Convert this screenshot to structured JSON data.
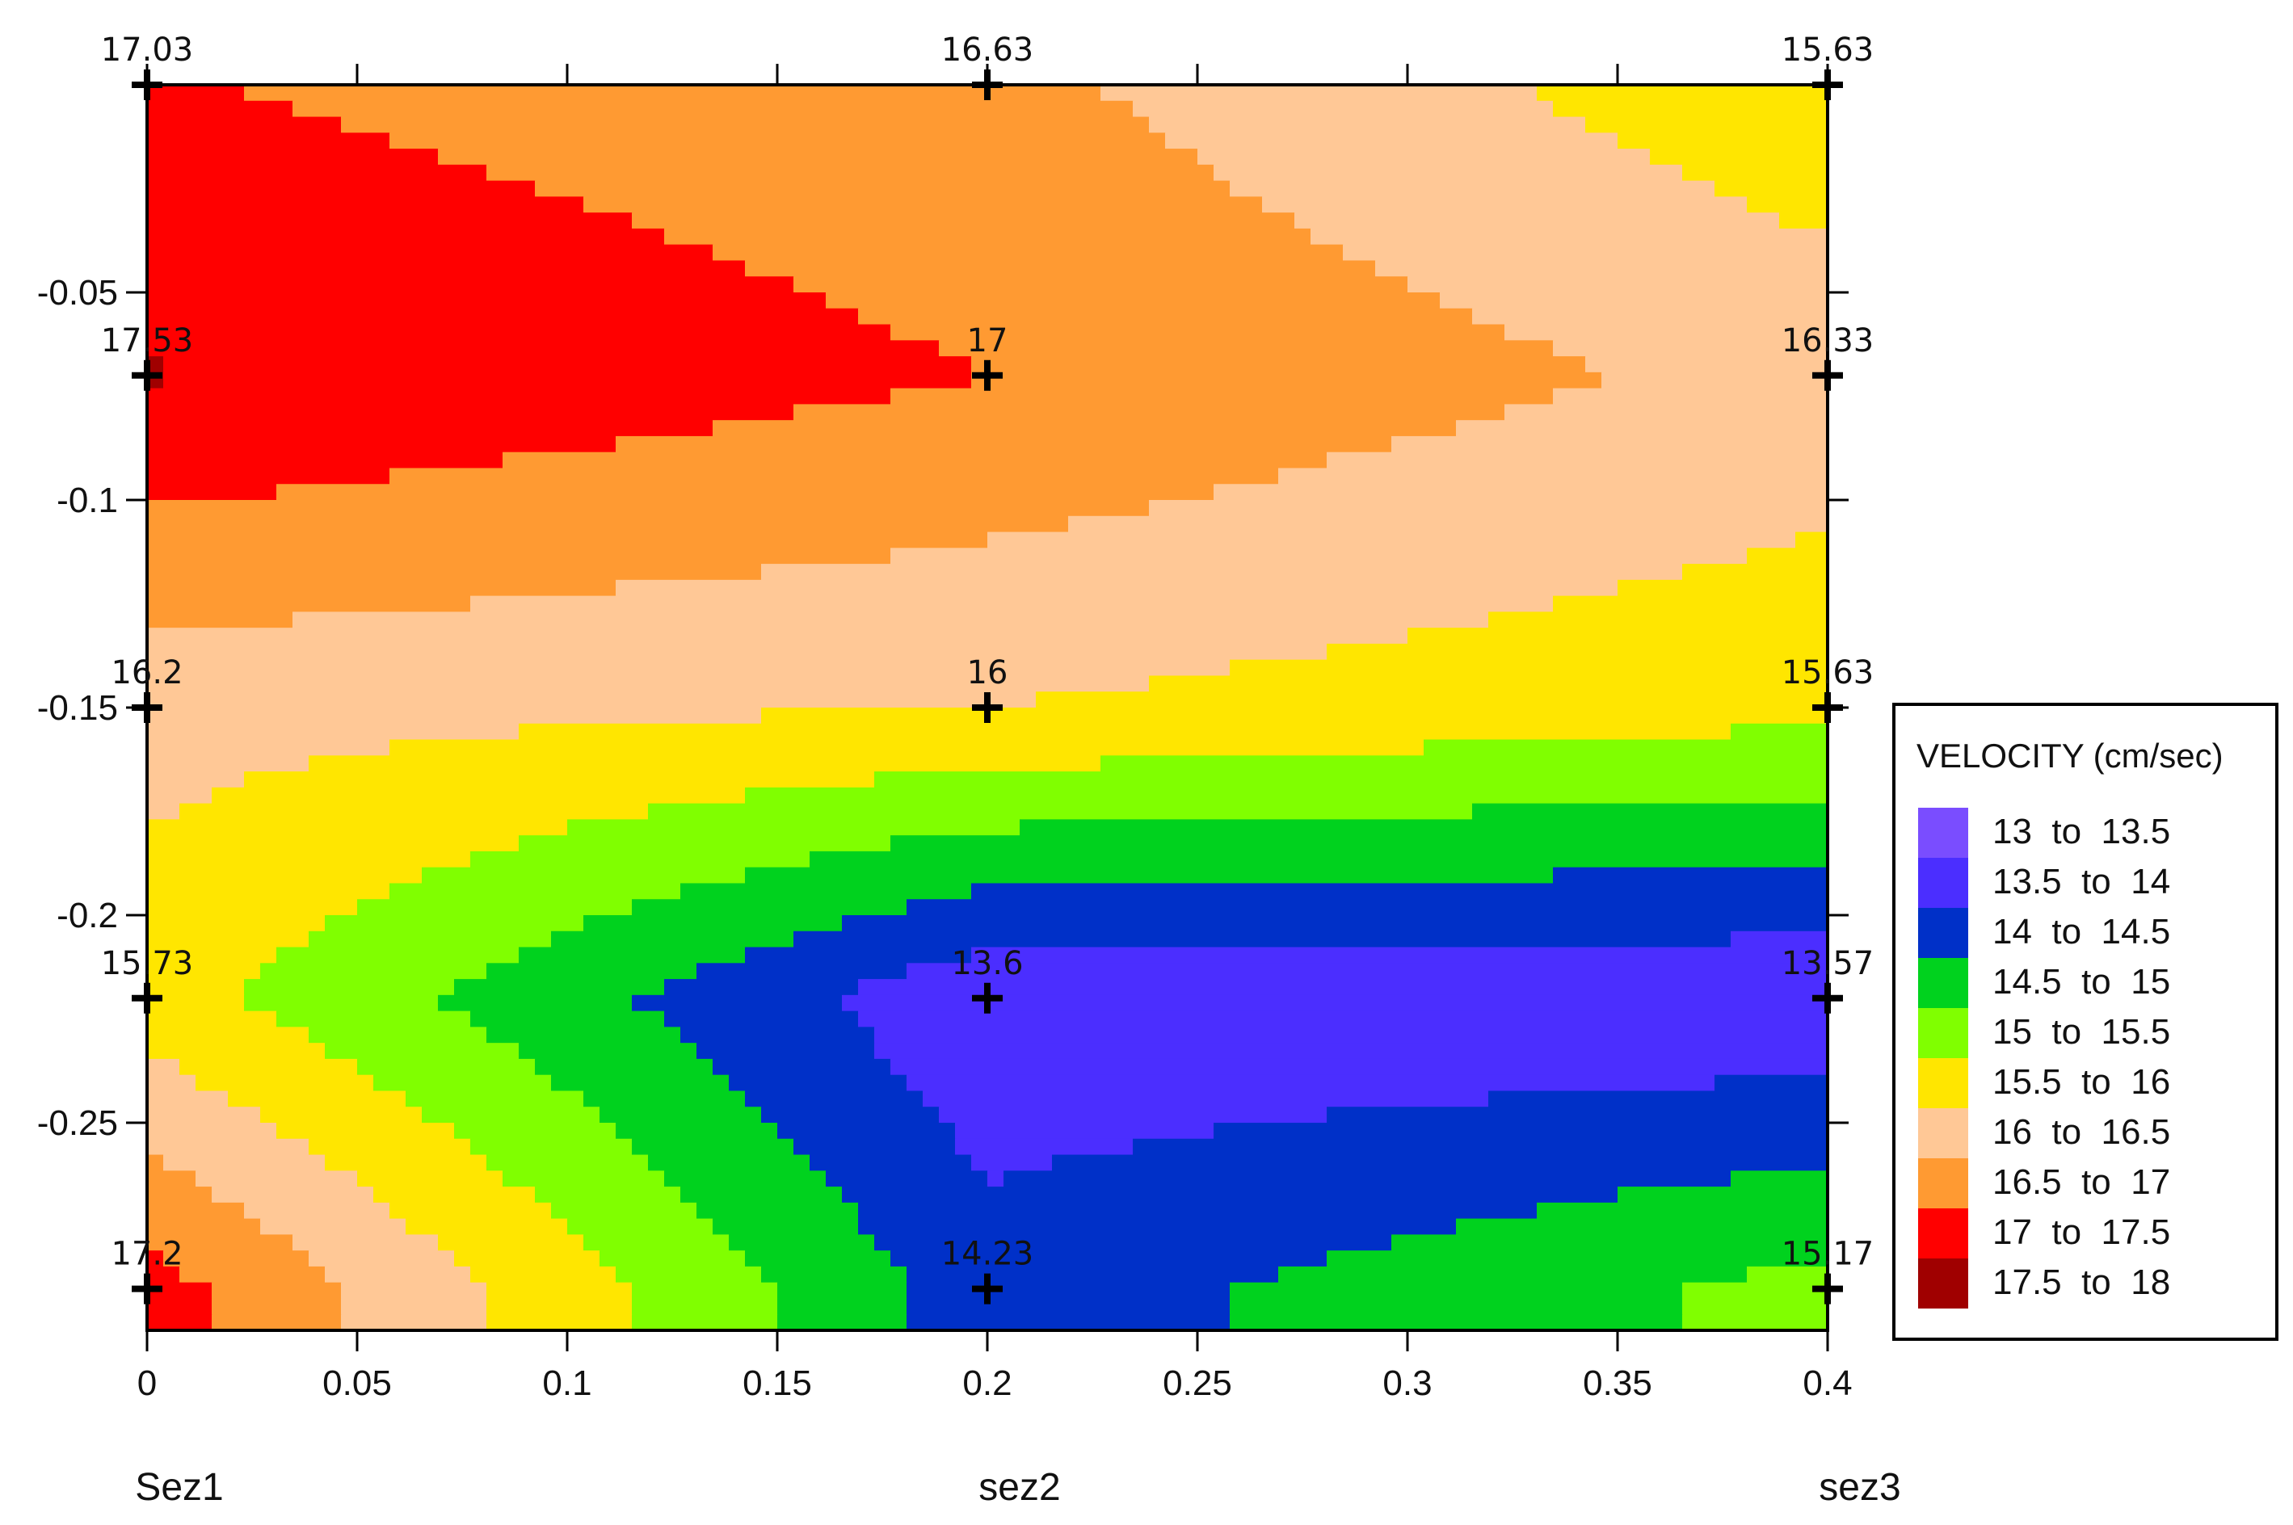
{
  "chart_data": {
    "type": "heatmap",
    "subtype": "filled-contour",
    "xlim": [
      0,
      0.4
    ],
    "ylim": [
      -0.3,
      0
    ],
    "x_ticks": [
      0,
      0.05,
      0.1,
      0.15,
      0.2,
      0.25,
      0.3,
      0.35,
      0.4
    ],
    "x_tick_labels": [
      "0",
      "0.05",
      "0.1",
      "0.15",
      "0.2",
      "0.25",
      "0.3",
      "0.35",
      "0.4"
    ],
    "y_ticks": [
      -0.05,
      -0.1,
      -0.15,
      -0.2,
      -0.25
    ],
    "y_tick_labels": [
      "-0.05",
      "-0.1",
      "-0.15",
      "-0.2",
      "-0.25"
    ],
    "section_labels": [
      {
        "x": 0,
        "text": "Sez1"
      },
      {
        "x": 0.2,
        "text": "sez2"
      },
      {
        "x": 0.4,
        "text": "sez3"
      }
    ],
    "points": [
      {
        "x": 0,
        "y": 0,
        "value": 17.03,
        "label": "17.03"
      },
      {
        "x": 0,
        "y": -0.07,
        "value": 17.53,
        "label": "17.53"
      },
      {
        "x": 0,
        "y": -0.15,
        "value": 16.2,
        "label": "16.2"
      },
      {
        "x": 0,
        "y": -0.22,
        "value": 15.73,
        "label": "15.73"
      },
      {
        "x": 0,
        "y": -0.29,
        "value": 17.2,
        "label": "17.2"
      },
      {
        "x": 0.2,
        "y": 0,
        "value": 16.63,
        "label": "16.63"
      },
      {
        "x": 0.2,
        "y": -0.07,
        "value": 17,
        "label": "17"
      },
      {
        "x": 0.2,
        "y": -0.15,
        "value": 16,
        "label": "16"
      },
      {
        "x": 0.2,
        "y": -0.22,
        "value": 13.6,
        "label": "13.6"
      },
      {
        "x": 0.2,
        "y": -0.29,
        "value": 14.23,
        "label": "14.23"
      },
      {
        "x": 0.4,
        "y": 0,
        "value": 15.63,
        "label": "15.63"
      },
      {
        "x": 0.4,
        "y": -0.07,
        "value": 16.33,
        "label": "16.33"
      },
      {
        "x": 0.4,
        "y": -0.15,
        "value": 15.63,
        "label": "15.63"
      },
      {
        "x": 0.4,
        "y": -0.22,
        "value": 13.57,
        "label": "13.57"
      },
      {
        "x": 0.4,
        "y": -0.29,
        "value": 15.17,
        "label": "15.17"
      }
    ],
    "legend": {
      "title": "VELOCITY (cm/sec)",
      "placement": "right",
      "entries": [
        {
          "low": 13,
          "high": 13.5,
          "label": "13  to  13.5",
          "color": "#7A4DFF"
        },
        {
          "low": 13.5,
          "high": 14,
          "label": "13.5  to  14",
          "color": "#4B2EFF"
        },
        {
          "low": 14,
          "high": 14.5,
          "label": "14  to  14.5",
          "color": "#0030C8"
        },
        {
          "low": 14.5,
          "high": 15,
          "label": "14.5  to  15",
          "color": "#00D21E"
        },
        {
          "low": 15,
          "high": 15.5,
          "label": "15  to  15.5",
          "color": "#80FF00"
        },
        {
          "low": 15.5,
          "high": 16,
          "label": "15.5  to  16",
          "color": "#FFE600"
        },
        {
          "low": 16,
          "high": 16.5,
          "label": "16  to  16.5",
          "color": "#FFC896"
        },
        {
          "low": 16.5,
          "high": 17,
          "label": "16.5  to  17",
          "color": "#FF9A32"
        },
        {
          "low": 17,
          "high": 17.5,
          "label": "17  to  17.5",
          "color": "#FF0000"
        },
        {
          "low": 17.5,
          "high": 18,
          "label": "17.5  to  18",
          "color": "#A00000"
        }
      ]
    },
    "grid": false
  }
}
